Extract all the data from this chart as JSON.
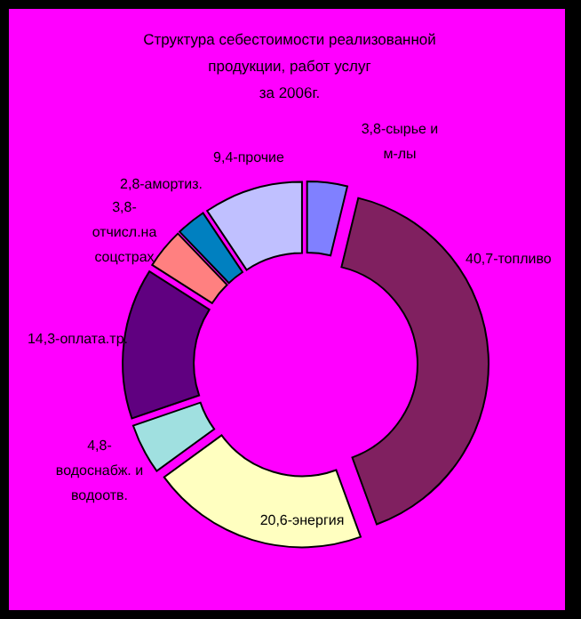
{
  "chart_data": {
    "type": "donut",
    "title": "Структура себестоимости реализованной\nпродукции, работ услуг\nза  2006г.",
    "categories": [
      "3,8-сырье и\nм-лы",
      "40,7-топливо",
      "20,6-энергия",
      "4,8-\nводоснабж. и\nводоотв.",
      "14,3-оплата.тр.",
      "3,8-\nотчисл.на\nсоцстрах",
      "2,8-амортиз.",
      "9,4-прочие"
    ],
    "values": [
      3.8,
      40.7,
      20.6,
      4.8,
      14.3,
      3.8,
      2.8,
      9.4
    ],
    "colors": [
      "#8080ff",
      "#802060",
      "#ffffc0",
      "#a0e0e0",
      "#600080",
      "#ff8080",
      "#0080c0",
      "#c0c0ff"
    ]
  }
}
